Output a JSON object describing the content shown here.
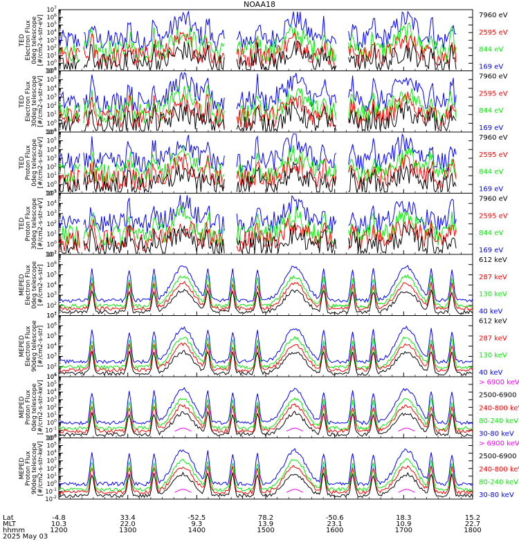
{
  "title": "NOAA18",
  "colors": {
    "blue": "#0000ff",
    "red": "#ff0000",
    "green": "#00ee00",
    "black": "#000000",
    "magenta": "#ff00ff"
  },
  "footer": {
    "row_labels": [
      "Lat",
      "MLT",
      "hhmm",
      "2025 May 03"
    ],
    "lat": [
      "-4.8",
      "33.4",
      "-52.5",
      "78.2",
      "-50.6",
      "18.3",
      "15.2"
    ],
    "mlt": [
      "10.3",
      "22.0",
      "9.3",
      "13.9",
      "23.1",
      "10.9",
      "22.7"
    ],
    "hhmm": [
      "1200",
      "1300",
      "1400",
      "1500",
      "1600",
      "1700",
      "1800"
    ]
  },
  "chart_data": [
    {
      "type": "line",
      "panel": 1,
      "ylabel": [
        "TED",
        "Electron Flux",
        "0deg telescope",
        "[#/cm2-s-str-eV]"
      ],
      "y_scale": "log",
      "ylim_exp": [
        -1,
        7
      ],
      "series": [
        {
          "name": "7960 eV",
          "color": "black"
        },
        {
          "name": "2595 eV",
          "color": "red"
        },
        {
          "name": "844 eV",
          "color": "green"
        },
        {
          "name": "169 eV",
          "color": "blue"
        }
      ]
    },
    {
      "type": "line",
      "panel": 2,
      "ylabel": [
        "TED",
        "Electron Flux",
        "30deg telescope",
        "[#/cm2-s-str-eV]"
      ],
      "y_scale": "log",
      "ylim_exp": [
        -1,
        6
      ],
      "series": [
        {
          "name": "7960 eV",
          "color": "black"
        },
        {
          "name": "2595 eV",
          "color": "red"
        },
        {
          "name": "844 eV",
          "color": "green"
        },
        {
          "name": "169 eV",
          "color": "blue"
        }
      ]
    },
    {
      "type": "line",
      "panel": 3,
      "ylabel": [
        "TED",
        "Proton Flux",
        "0deg telescope",
        "[#/cm2-s-str-eV]"
      ],
      "y_scale": "log",
      "ylim_exp": [
        -1,
        6
      ],
      "series": [
        {
          "name": "7960 eV",
          "color": "black"
        },
        {
          "name": "2595 eV",
          "color": "red"
        },
        {
          "name": "844 eV",
          "color": "green"
        },
        {
          "name": "169 eV",
          "color": "blue"
        }
      ]
    },
    {
      "type": "line",
      "panel": 4,
      "ylabel": [
        "TED",
        "Proton Flux",
        "30deg telescope",
        "[#/cm2-s-str-eV]"
      ],
      "y_scale": "log",
      "ylim_exp": [
        -1,
        5
      ],
      "series": [
        {
          "name": "7960 eV",
          "color": "black"
        },
        {
          "name": "2595 eV",
          "color": "red"
        },
        {
          "name": "844 eV",
          "color": "green"
        },
        {
          "name": "169 eV",
          "color": "blue"
        }
      ]
    },
    {
      "type": "line",
      "panel": 5,
      "ylabel": [
        "MEPED",
        "Electron Flux",
        "0deg telescope",
        "[#/cm2-s-str]"
      ],
      "y_scale": "log",
      "ylim_exp": [
        1,
        7
      ],
      "series": [
        {
          "name": "612 keV",
          "color": "black"
        },
        {
          "name": "287 keV",
          "color": "red"
        },
        {
          "name": "130 keV",
          "color": "green"
        },
        {
          "name": "40 keV",
          "color": "blue"
        }
      ]
    },
    {
      "type": "line",
      "panel": 6,
      "ylabel": [
        "MEPED",
        "Electron Flux",
        "90deg telescope",
        "[#/cm2-s-str]"
      ],
      "y_scale": "log",
      "ylim_exp": [
        1,
        7
      ],
      "series": [
        {
          "name": "612 keV",
          "color": "black"
        },
        {
          "name": "287 keV",
          "color": "red"
        },
        {
          "name": "130 keV",
          "color": "green"
        },
        {
          "name": "40 keV",
          "color": "blue"
        }
      ]
    },
    {
      "type": "line",
      "panel": 7,
      "ylabel": [
        "MEPED",
        "Proton Flux",
        "0deg telescope",
        "[#/cm2-s-str-keV]"
      ],
      "y_scale": "log",
      "ylim_exp": [
        -2,
        6
      ],
      "series": [
        {
          "name": "> 6900 keV",
          "color": "magenta"
        },
        {
          "name": "2500-6900",
          "color": "black"
        },
        {
          "name": "240-800 keV",
          "color": "red"
        },
        {
          "name": "80-240 keV",
          "color": "green"
        },
        {
          "name": "30-80 keV",
          "color": "blue"
        }
      ]
    },
    {
      "type": "line",
      "panel": 8,
      "ylabel": [
        "MEPED",
        "Proton Flux",
        "90deg telescope",
        "[#/cm2-s-str-keV]"
      ],
      "y_scale": "log",
      "ylim_exp": [
        -2,
        6
      ],
      "series": [
        {
          "name": "> 6900 keV",
          "color": "magenta"
        },
        {
          "name": "2500-6900",
          "color": "black"
        },
        {
          "name": "240-800 keV",
          "color": "red"
        },
        {
          "name": "80-240 keV",
          "color": "green"
        },
        {
          "name": "30-80 keV",
          "color": "blue"
        }
      ]
    }
  ]
}
